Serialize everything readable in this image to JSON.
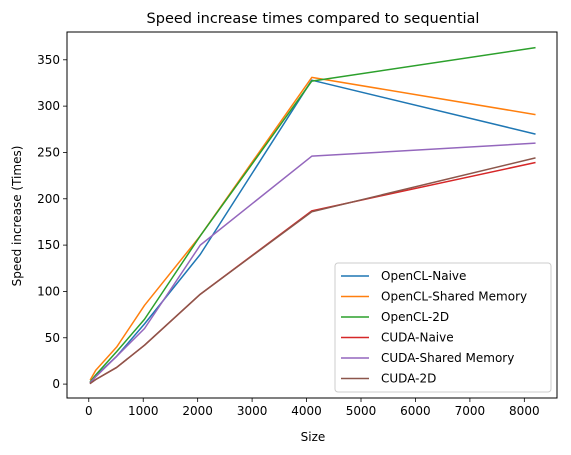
{
  "chart_data": {
    "type": "line",
    "title": "Speed increase times compared to sequential",
    "xlabel": "Size",
    "ylabel": "Speed increase (Times)",
    "xlim": [
      -400,
      8600
    ],
    "ylim": [
      -15,
      380
    ],
    "xticks": [
      0,
      1000,
      2000,
      3000,
      4000,
      5000,
      6000,
      7000,
      8000
    ],
    "yticks": [
      0,
      50,
      100,
      150,
      200,
      250,
      300,
      350
    ],
    "x": [
      32,
      128,
      512,
      1024,
      2048,
      4096,
      8192
    ],
    "grid": false,
    "legend_position": "lower-right",
    "series": [
      {
        "name": "OpenCL-Naive",
        "color": "#1f77b4",
        "values": [
          2,
          9,
          30,
          65,
          140,
          328,
          270
        ]
      },
      {
        "name": "OpenCL-Shared Memory",
        "color": "#ff7f0e",
        "values": [
          5,
          15,
          40,
          85,
          160,
          331,
          291
        ]
      },
      {
        "name": "OpenCL-2D",
        "color": "#2ca02c",
        "values": [
          3,
          10,
          35,
          70,
          160,
          327,
          363
        ]
      },
      {
        "name": "CUDA-Naive",
        "color": "#d62728",
        "values": [
          1,
          5,
          18,
          42,
          97,
          187,
          239
        ]
      },
      {
        "name": "CUDA-Shared Memory",
        "color": "#9467bd",
        "values": [
          2,
          8,
          30,
          60,
          150,
          246,
          260
        ]
      },
      {
        "name": "CUDA-2D",
        "color": "#8c564b",
        "values": [
          1,
          5,
          18,
          42,
          97,
          186,
          244
        ]
      }
    ]
  }
}
